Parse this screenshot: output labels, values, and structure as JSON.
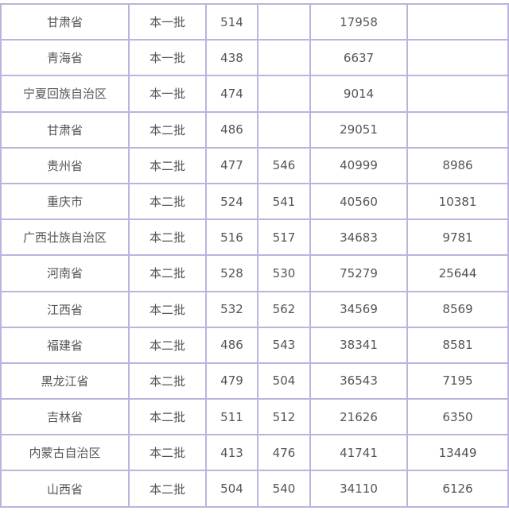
{
  "colors": {
    "border": "#bdb3dc",
    "text": "#555555"
  },
  "rows": [
    [
      "甘肃省",
      "本一批",
      "514",
      "",
      "17958",
      ""
    ],
    [
      "青海省",
      "本一批",
      "438",
      "",
      "6637",
      ""
    ],
    [
      "宁夏回族自治区",
      "本一批",
      "474",
      "",
      "9014",
      ""
    ],
    [
      "甘肃省",
      "本二批",
      "486",
      "",
      "29051",
      ""
    ],
    [
      "贵州省",
      "本二批",
      "477",
      "546",
      "40999",
      "8986"
    ],
    [
      "重庆市",
      "本二批",
      "524",
      "541",
      "40560",
      "10381"
    ],
    [
      "广西壮族自治区",
      "本二批",
      "516",
      "517",
      "34683",
      "9781"
    ],
    [
      "河南省",
      "本二批",
      "528",
      "530",
      "75279",
      "25644"
    ],
    [
      "江西省",
      "本二批",
      "532",
      "562",
      "34569",
      "8569"
    ],
    [
      "福建省",
      "本二批",
      "486",
      "543",
      "38341",
      "8581"
    ],
    [
      "黑龙江省",
      "本二批",
      "479",
      "504",
      "36543",
      "7195"
    ],
    [
      "吉林省",
      "本二批",
      "511",
      "512",
      "21626",
      "6350"
    ],
    [
      "内蒙古自治区",
      "本二批",
      "413",
      "476",
      "41741",
      "13449"
    ],
    [
      "山西省",
      "本二批",
      "504",
      "540",
      "34110",
      "6126"
    ]
  ]
}
